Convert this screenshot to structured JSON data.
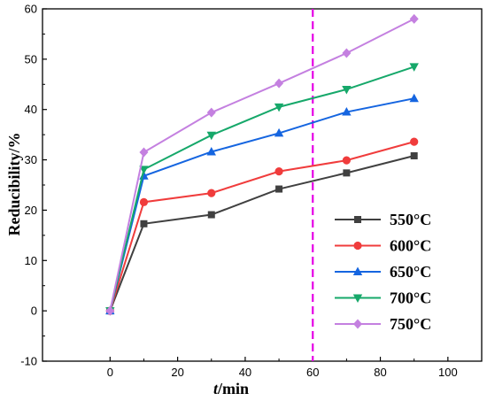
{
  "chart_data": {
    "type": "line",
    "title": "",
    "xlabel_italic": "t",
    "xlabel_rest": "/min",
    "ylabel": "Reducibility/%",
    "xlim": [
      -20,
      110
    ],
    "ylim": [
      -10,
      60
    ],
    "xticks": [
      0,
      20,
      40,
      60,
      80,
      100
    ],
    "yticks": [
      -10,
      0,
      10,
      20,
      30,
      40,
      50,
      60
    ],
    "grid": false,
    "legend_position": "bottom-right",
    "reference_line": {
      "x": 60,
      "color": "#e600e6",
      "style": "dashed"
    },
    "x": [
      0,
      10,
      30,
      50,
      70,
      90
    ],
    "series": [
      {
        "name": "550°C",
        "color": "#404040",
        "marker": "square",
        "values": [
          0,
          17.3,
          19.1,
          24.2,
          27.4,
          30.8
        ]
      },
      {
        "name": "600°C",
        "color": "#f03c3c",
        "marker": "circle",
        "values": [
          0,
          21.6,
          23.4,
          27.7,
          29.9,
          33.6
        ]
      },
      {
        "name": "650°C",
        "color": "#1565e0",
        "marker": "triangle-up",
        "values": [
          0,
          26.8,
          31.6,
          35.3,
          39.5,
          42.2
        ]
      },
      {
        "name": "700°C",
        "color": "#16a86a",
        "marker": "triangle-down",
        "values": [
          0,
          28.1,
          34.9,
          40.5,
          44.0,
          48.5
        ]
      },
      {
        "name": "750°C",
        "color": "#c480e0",
        "marker": "diamond",
        "values": [
          0,
          31.5,
          39.4,
          45.2,
          51.2,
          58.0
        ]
      }
    ]
  }
}
